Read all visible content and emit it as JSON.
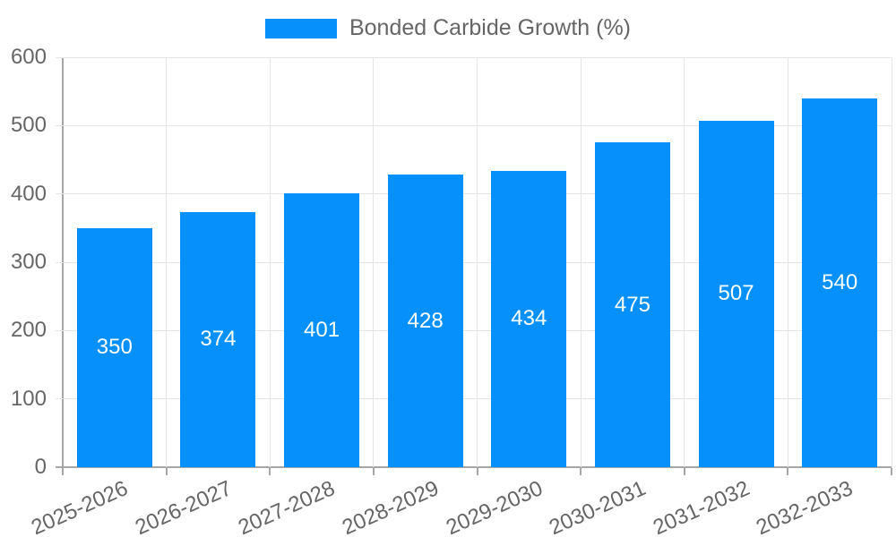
{
  "chart_data": {
    "type": "bar",
    "title": "",
    "legend": {
      "label": "Bonded Carbide Growth (%)",
      "position": "top"
    },
    "categories": [
      "2025-2026",
      "2026-2027",
      "2027-2028",
      "2028-2029",
      "2029-2030",
      "2030-2031",
      "2031-2032",
      "2032-2033"
    ],
    "series": [
      {
        "name": "Bonded Carbide Growth (%)",
        "values": [
          350,
          374,
          401,
          428,
          434,
          475,
          507,
          540
        ]
      }
    ],
    "value_labels": true,
    "xlabel": "",
    "ylabel": "",
    "ylim": [
      0,
      600
    ],
    "ytick_step": 100,
    "x_label_rotation_deg": -24,
    "grid": true,
    "colors": {
      "bar": "#0590FB",
      "grid": "#e5e5e5",
      "axis_line": "#a6a6a6",
      "axis_text": "#666666",
      "value_label": "#ffffff",
      "background": "#ffffff"
    }
  }
}
